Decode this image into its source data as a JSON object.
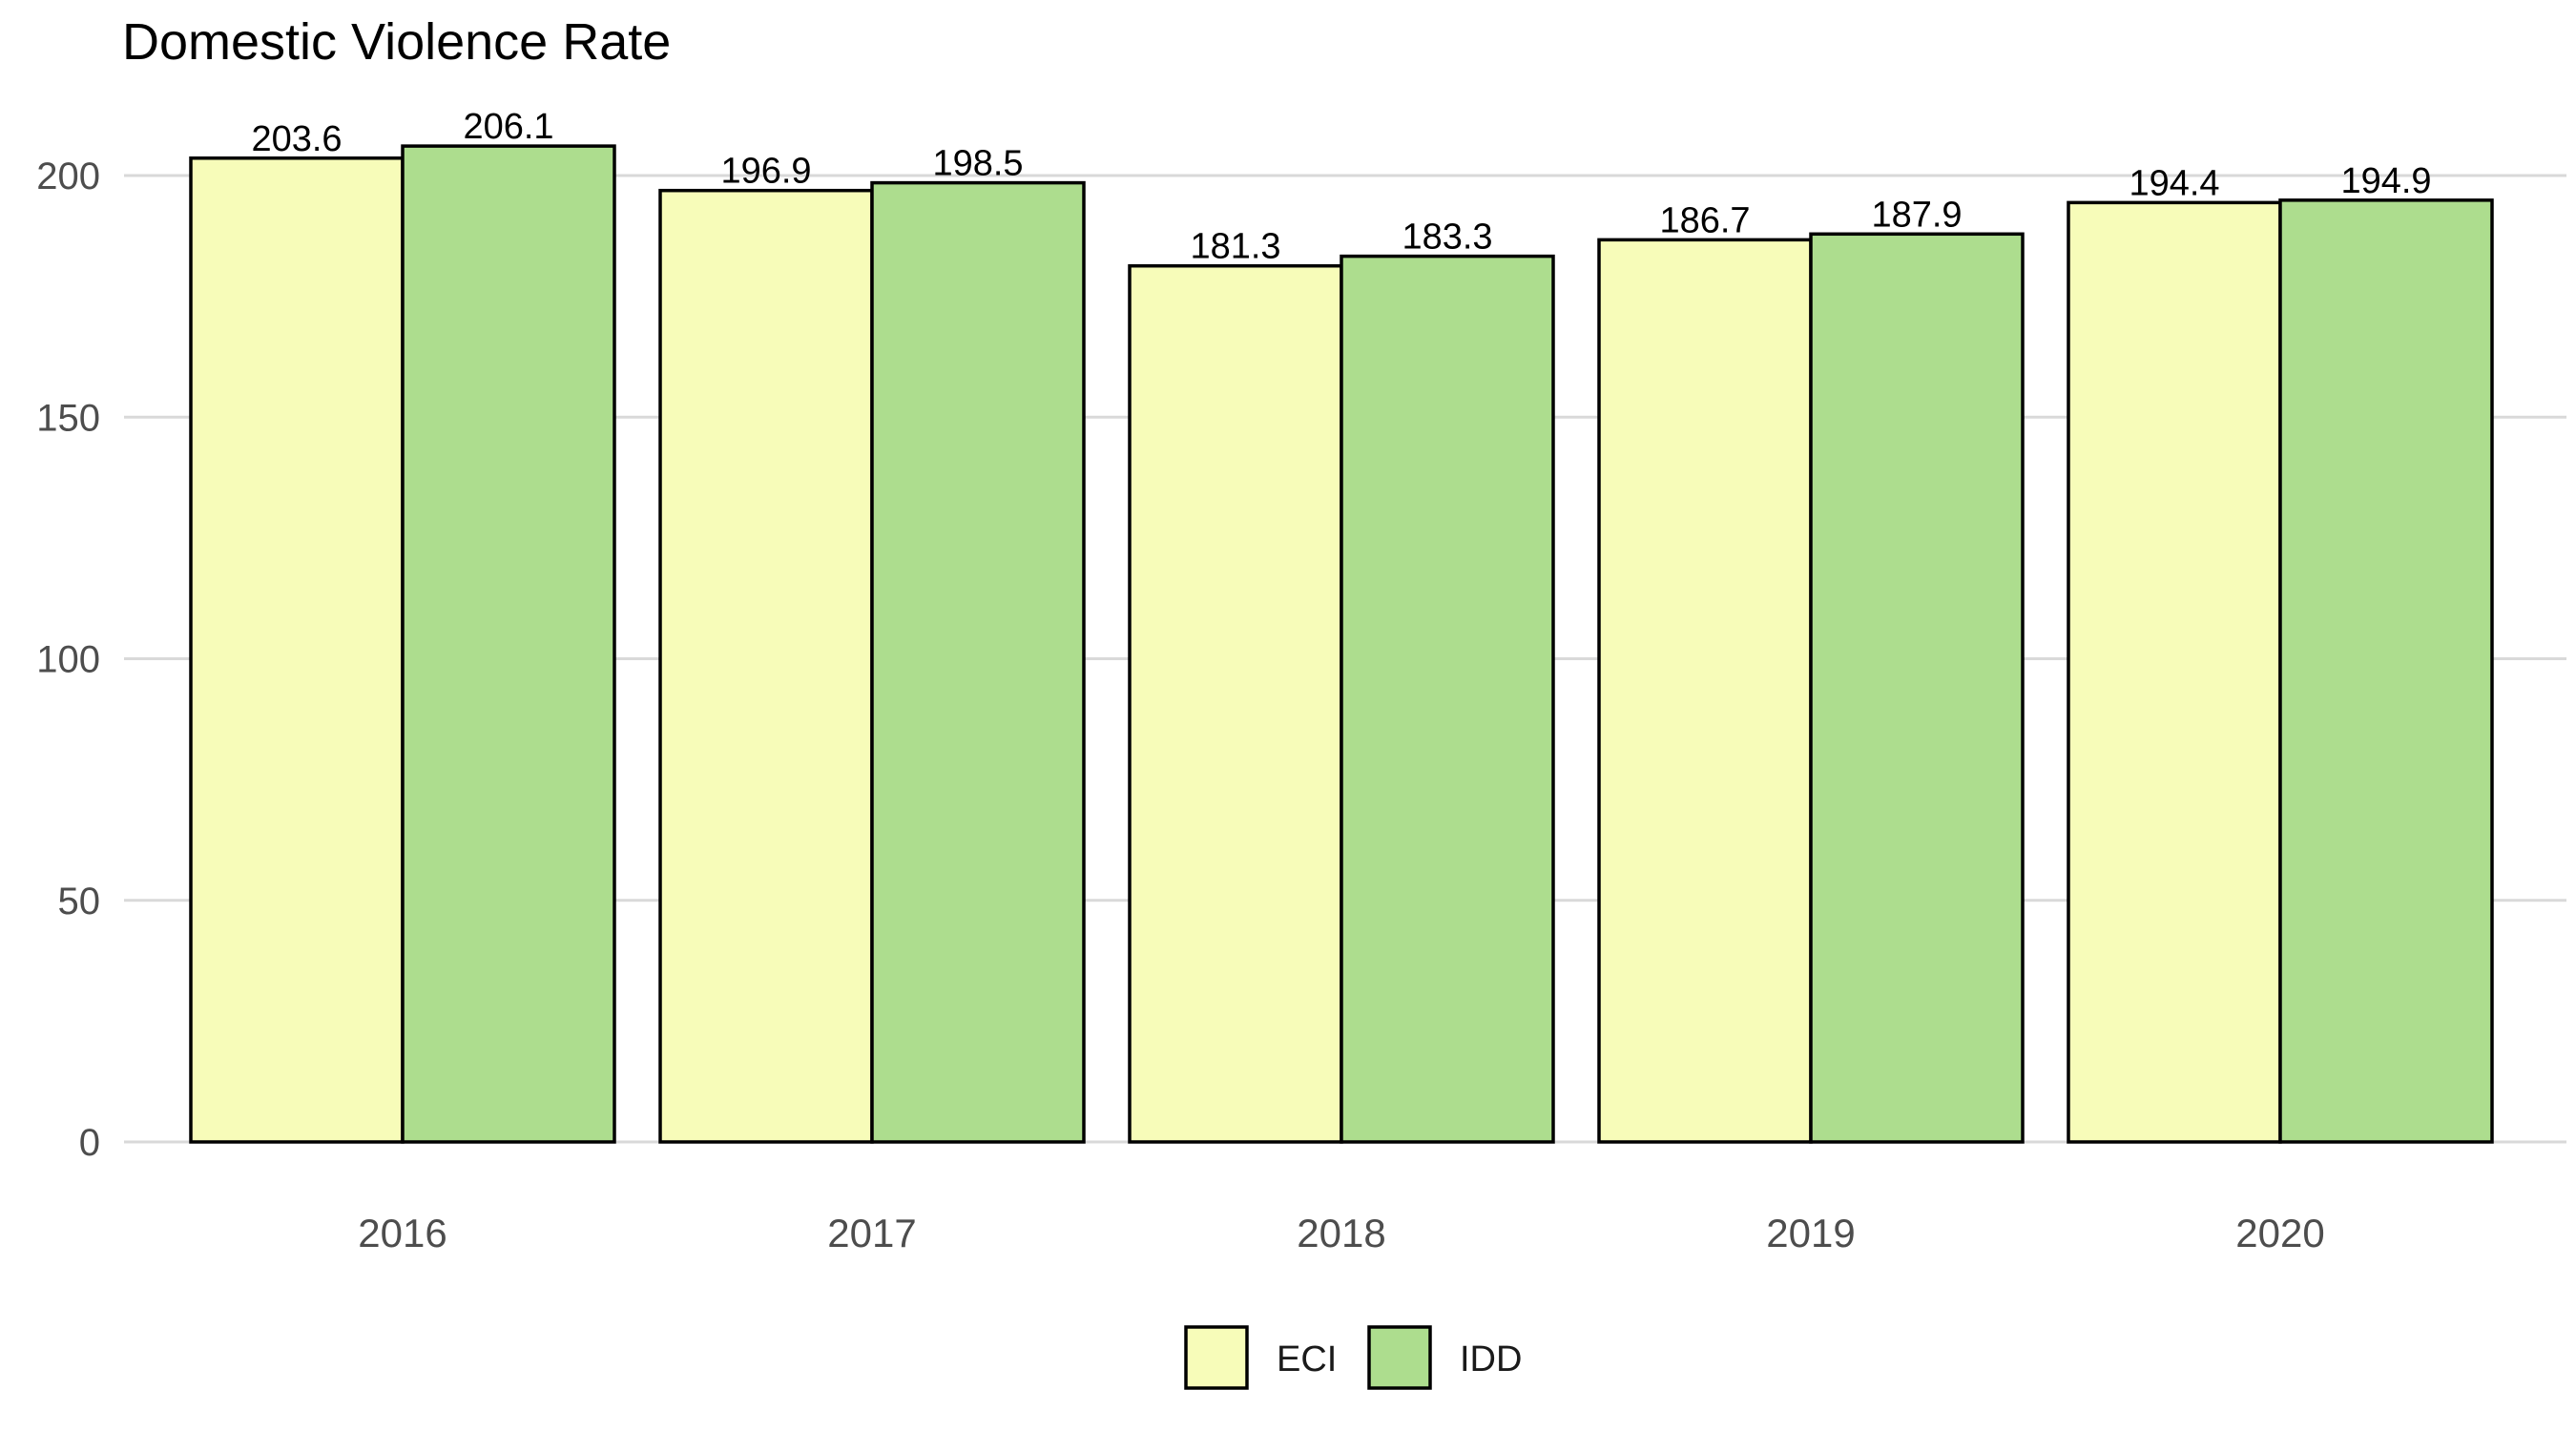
{
  "chart_data": {
    "type": "bar",
    "title": "Domestic Violence Rate",
    "xlabel": "",
    "ylabel": "",
    "categories": [
      "2016",
      "2017",
      "2018",
      "2019",
      "2020"
    ],
    "series": [
      {
        "name": "ECI",
        "color": "#f7fcb9",
        "values": [
          203.6,
          196.9,
          181.3,
          186.7,
          194.4
        ]
      },
      {
        "name": "IDD",
        "color": "#addd8e",
        "values": [
          206.1,
          198.5,
          183.3,
          187.9,
          194.9
        ]
      }
    ],
    "ylim": [
      0,
      210
    ],
    "yticks": [
      0,
      50,
      100,
      150,
      200
    ],
    "grid": true,
    "legend_position": "bottom"
  }
}
